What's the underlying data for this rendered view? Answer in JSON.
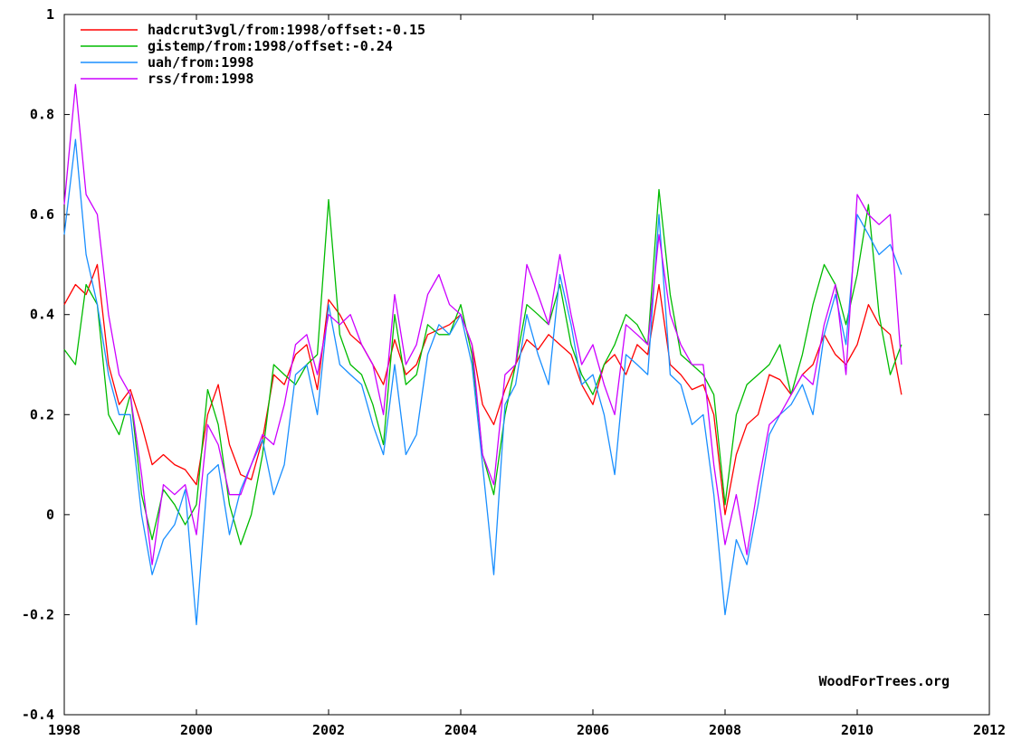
{
  "chart_data": {
    "type": "line",
    "title": "",
    "xlabel": "",
    "ylabel": "",
    "xlim": [
      1998,
      2012
    ],
    "ylim": [
      -0.4,
      1
    ],
    "x_ticks": [
      "1998",
      "2000",
      "2002",
      "2004",
      "2006",
      "2008",
      "2010",
      "2012"
    ],
    "y_ticks": [
      "-0.4",
      "-0.2",
      "0",
      "0.2",
      "0.4",
      "0.6",
      "0.8",
      "1"
    ],
    "grid": false,
    "legend_position": "top-left",
    "watermark": "WoodForTrees.org",
    "series": [
      {
        "name": "hadcrut3vgl/from:1998/offset:-0.15",
        "color": "#ff0000",
        "x": [
          1998.0,
          1998.17,
          1998.33,
          1998.5,
          1998.67,
          1998.83,
          1999.0,
          1999.17,
          1999.33,
          1999.5,
          1999.67,
          1999.83,
          2000.0,
          2000.17,
          2000.33,
          2000.5,
          2000.67,
          2000.83,
          2001.0,
          2001.17,
          2001.33,
          2001.5,
          2001.67,
          2001.83,
          2002.0,
          2002.17,
          2002.33,
          2002.5,
          2002.67,
          2002.83,
          2003.0,
          2003.17,
          2003.33,
          2003.5,
          2003.67,
          2003.83,
          2004.0,
          2004.17,
          2004.33,
          2004.5,
          2004.67,
          2004.83,
          2005.0,
          2005.17,
          2005.33,
          2005.5,
          2005.67,
          2005.83,
          2006.0,
          2006.17,
          2006.33,
          2006.5,
          2006.67,
          2006.83,
          2007.0,
          2007.17,
          2007.33,
          2007.5,
          2007.67,
          2007.83,
          2008.0,
          2008.17,
          2008.33,
          2008.5,
          2008.67,
          2008.83,
          2009.0,
          2009.17,
          2009.33,
          2009.5,
          2009.67,
          2009.83,
          2010.0,
          2010.17,
          2010.33,
          2010.5,
          2010.67
        ],
        "values": [
          0.42,
          0.46,
          0.44,
          0.5,
          0.3,
          0.22,
          0.25,
          0.18,
          0.1,
          0.12,
          0.1,
          0.09,
          0.06,
          0.2,
          0.26,
          0.14,
          0.08,
          0.07,
          0.15,
          0.28,
          0.26,
          0.32,
          0.34,
          0.25,
          0.43,
          0.4,
          0.36,
          0.34,
          0.3,
          0.26,
          0.35,
          0.28,
          0.3,
          0.36,
          0.37,
          0.38,
          0.4,
          0.34,
          0.22,
          0.18,
          0.25,
          0.3,
          0.35,
          0.33,
          0.36,
          0.34,
          0.32,
          0.26,
          0.22,
          0.3,
          0.32,
          0.28,
          0.34,
          0.32,
          0.46,
          0.3,
          0.28,
          0.25,
          0.26,
          0.2,
          0.0,
          0.12,
          0.18,
          0.2,
          0.28,
          0.27,
          0.24,
          0.28,
          0.3,
          0.36,
          0.32,
          0.3,
          0.34,
          0.42,
          0.38,
          0.36,
          0.24
        ]
      },
      {
        "name": "gistemp/from:1998/offset:-0.24",
        "color": "#00bb00",
        "x": [
          1998.0,
          1998.17,
          1998.33,
          1998.5,
          1998.67,
          1998.83,
          1999.0,
          1999.17,
          1999.33,
          1999.5,
          1999.67,
          1999.83,
          2000.0,
          2000.17,
          2000.33,
          2000.5,
          2000.67,
          2000.83,
          2001.0,
          2001.17,
          2001.33,
          2001.5,
          2001.67,
          2001.83,
          2002.0,
          2002.17,
          2002.33,
          2002.5,
          2002.67,
          2002.83,
          2003.0,
          2003.17,
          2003.33,
          2003.5,
          2003.67,
          2003.83,
          2004.0,
          2004.17,
          2004.33,
          2004.5,
          2004.67,
          2004.83,
          2005.0,
          2005.17,
          2005.33,
          2005.5,
          2005.67,
          2005.83,
          2006.0,
          2006.17,
          2006.33,
          2006.5,
          2006.67,
          2006.83,
          2007.0,
          2007.17,
          2007.33,
          2007.5,
          2007.67,
          2007.83,
          2008.0,
          2008.17,
          2008.33,
          2008.5,
          2008.67,
          2008.83,
          2009.0,
          2009.17,
          2009.33,
          2009.5,
          2009.67,
          2009.83,
          2010.0,
          2010.17,
          2010.33,
          2010.5,
          2010.67
        ],
        "values": [
          0.33,
          0.3,
          0.46,
          0.42,
          0.2,
          0.16,
          0.24,
          0.04,
          -0.05,
          0.05,
          0.02,
          -0.02,
          0.02,
          0.25,
          0.18,
          0.02,
          -0.06,
          0.0,
          0.12,
          0.3,
          0.28,
          0.26,
          0.3,
          0.32,
          0.63,
          0.36,
          0.3,
          0.28,
          0.22,
          0.14,
          0.4,
          0.26,
          0.28,
          0.38,
          0.36,
          0.36,
          0.42,
          0.32,
          0.12,
          0.04,
          0.2,
          0.3,
          0.42,
          0.4,
          0.38,
          0.46,
          0.34,
          0.28,
          0.24,
          0.3,
          0.34,
          0.4,
          0.38,
          0.34,
          0.65,
          0.44,
          0.32,
          0.3,
          0.28,
          0.24,
          0.02,
          0.2,
          0.26,
          0.28,
          0.3,
          0.34,
          0.24,
          0.32,
          0.42,
          0.5,
          0.46,
          0.38,
          0.48,
          0.62,
          0.4,
          0.28,
          0.34
        ]
      },
      {
        "name": "uah/from:1998",
        "color": "#1a8fff",
        "x": [
          1998.0,
          1998.17,
          1998.33,
          1998.5,
          1998.67,
          1998.83,
          1999.0,
          1999.17,
          1999.33,
          1999.5,
          1999.67,
          1999.83,
          2000.0,
          2000.17,
          2000.33,
          2000.5,
          2000.67,
          2000.83,
          2001.0,
          2001.17,
          2001.33,
          2001.5,
          2001.67,
          2001.83,
          2002.0,
          2002.17,
          2002.33,
          2002.5,
          2002.67,
          2002.83,
          2003.0,
          2003.17,
          2003.33,
          2003.5,
          2003.67,
          2003.83,
          2004.0,
          2004.17,
          2004.33,
          2004.5,
          2004.67,
          2004.83,
          2005.0,
          2005.17,
          2005.33,
          2005.5,
          2005.67,
          2005.83,
          2006.0,
          2006.17,
          2006.33,
          2006.5,
          2006.67,
          2006.83,
          2007.0,
          2007.17,
          2007.33,
          2007.5,
          2007.67,
          2007.83,
          2008.0,
          2008.17,
          2008.33,
          2008.5,
          2008.67,
          2008.83,
          2009.0,
          2009.17,
          2009.33,
          2009.5,
          2009.67,
          2009.83,
          2010.0,
          2010.17,
          2010.33,
          2010.5,
          2010.67
        ],
        "values": [
          0.56,
          0.75,
          0.52,
          0.42,
          0.28,
          0.2,
          0.2,
          0.0,
          -0.12,
          -0.05,
          -0.02,
          0.05,
          -0.22,
          0.08,
          0.1,
          -0.04,
          0.05,
          0.1,
          0.15,
          0.04,
          0.1,
          0.28,
          0.3,
          0.2,
          0.42,
          0.3,
          0.28,
          0.26,
          0.18,
          0.12,
          0.3,
          0.12,
          0.16,
          0.32,
          0.38,
          0.36,
          0.4,
          0.3,
          0.1,
          -0.12,
          0.22,
          0.26,
          0.4,
          0.32,
          0.26,
          0.48,
          0.38,
          0.26,
          0.28,
          0.2,
          0.08,
          0.32,
          0.3,
          0.28,
          0.6,
          0.28,
          0.26,
          0.18,
          0.2,
          0.04,
          -0.2,
          -0.05,
          -0.1,
          0.02,
          0.16,
          0.2,
          0.22,
          0.26,
          0.2,
          0.36,
          0.44,
          0.34,
          0.6,
          0.56,
          0.52,
          0.54,
          0.48
        ]
      },
      {
        "name": "rss/from:1998",
        "color": "#cc00ff",
        "x": [
          1998.0,
          1998.17,
          1998.33,
          1998.5,
          1998.67,
          1998.83,
          1999.0,
          1999.17,
          1999.33,
          1999.5,
          1999.67,
          1999.83,
          2000.0,
          2000.17,
          2000.33,
          2000.5,
          2000.67,
          2000.83,
          2001.0,
          2001.17,
          2001.33,
          2001.5,
          2001.67,
          2001.83,
          2002.0,
          2002.17,
          2002.33,
          2002.5,
          2002.67,
          2002.83,
          2003.0,
          2003.17,
          2003.33,
          2003.5,
          2003.67,
          2003.83,
          2004.0,
          2004.17,
          2004.33,
          2004.5,
          2004.67,
          2004.83,
          2005.0,
          2005.17,
          2005.33,
          2005.5,
          2005.67,
          2005.83,
          2006.0,
          2006.17,
          2006.33,
          2006.5,
          2006.67,
          2006.83,
          2007.0,
          2007.17,
          2007.33,
          2007.5,
          2007.67,
          2007.83,
          2008.0,
          2008.17,
          2008.33,
          2008.5,
          2008.67,
          2008.83,
          2009.0,
          2009.17,
          2009.33,
          2009.5,
          2009.67,
          2009.83,
          2010.0,
          2010.17,
          2010.33,
          2010.5,
          2010.67
        ],
        "values": [
          0.62,
          0.86,
          0.64,
          0.6,
          0.4,
          0.28,
          0.24,
          0.08,
          -0.1,
          0.06,
          0.04,
          0.06,
          -0.04,
          0.18,
          0.14,
          0.04,
          0.04,
          0.1,
          0.16,
          0.14,
          0.22,
          0.34,
          0.36,
          0.28,
          0.4,
          0.38,
          0.4,
          0.34,
          0.3,
          0.2,
          0.44,
          0.3,
          0.34,
          0.44,
          0.48,
          0.42,
          0.4,
          0.34,
          0.12,
          0.06,
          0.28,
          0.3,
          0.5,
          0.44,
          0.38,
          0.52,
          0.4,
          0.3,
          0.34,
          0.26,
          0.2,
          0.38,
          0.36,
          0.34,
          0.56,
          0.4,
          0.34,
          0.3,
          0.3,
          0.1,
          -0.06,
          0.04,
          -0.08,
          0.06,
          0.18,
          0.2,
          0.24,
          0.28,
          0.26,
          0.38,
          0.46,
          0.28,
          0.64,
          0.6,
          0.58,
          0.6,
          0.3
        ]
      }
    ]
  }
}
